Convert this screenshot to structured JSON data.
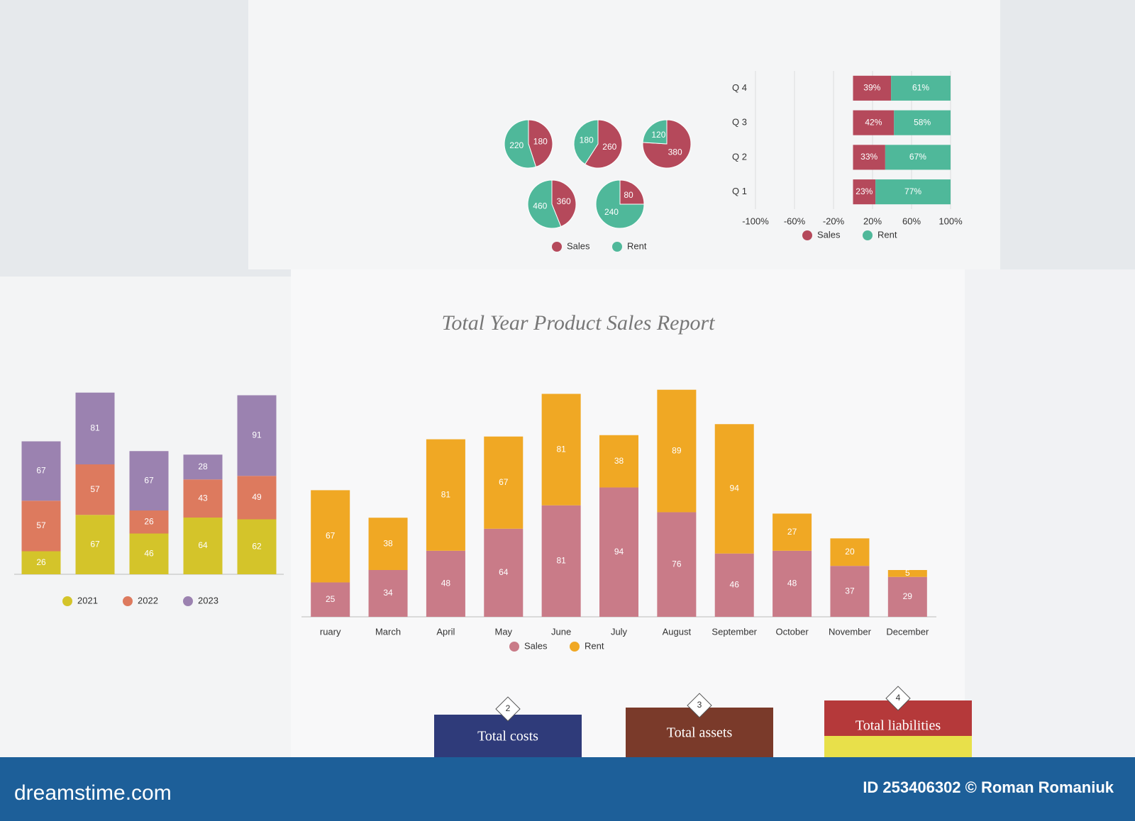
{
  "chart_data": [
    {
      "type": "stacked-bar",
      "title": "Total Year Product Sales Report",
      "categories": [
        "ruary",
        "March",
        "April",
        "May",
        "June",
        "July",
        "August",
        "September",
        "October",
        "November",
        "December"
      ],
      "series": [
        {
          "name": "Sales",
          "color": "#c97b88",
          "values": [
            25,
            34,
            48,
            64,
            81,
            94,
            76,
            46,
            48,
            37,
            29
          ]
        },
        {
          "name": "Rent",
          "color": "#f0a824",
          "values": [
            67,
            38,
            81,
            67,
            81,
            38,
            89,
            94,
            27,
            20,
            5
          ]
        }
      ],
      "ylim": [
        0,
        170
      ]
    },
    {
      "type": "stacked-bar",
      "categories": [
        null,
        null,
        null,
        null,
        null
      ],
      "series": [
        {
          "name": "2021",
          "color": "#d4c42a",
          "values": [
            26,
            67,
            46,
            64,
            62
          ]
        },
        {
          "name": "2022",
          "color": "#dd7a5e",
          "values": [
            57,
            57,
            26,
            43,
            49
          ]
        },
        {
          "name": "2023",
          "color": "#9b82b0",
          "values": [
            67,
            81,
            67,
            28,
            91
          ]
        }
      ],
      "ylim": [
        0,
        200
      ]
    },
    {
      "type": "stacked-hbar",
      "categories": [
        "Q 1",
        "Q 2",
        "Q 3",
        "Q 4"
      ],
      "series": [
        {
          "name": "Sales",
          "color": "#b5495b",
          "values": [
            23,
            33,
            42,
            39
          ],
          "value_labels": [
            "23%",
            "33%",
            "42%",
            "39%"
          ]
        },
        {
          "name": "Rent",
          "color": "#4fb89a",
          "values": [
            77,
            67,
            58,
            61
          ],
          "value_labels": [
            "77%",
            "67%",
            "58%",
            "61%"
          ]
        }
      ],
      "xlim": [
        -100,
        100
      ],
      "xticks": [
        {
          "value": -100,
          "label": "-100%"
        },
        {
          "value": -60,
          "label": "-60%"
        },
        {
          "value": -20,
          "label": "-20%"
        },
        {
          "value": 20,
          "label": "20%"
        },
        {
          "value": 60,
          "label": "60%"
        },
        {
          "value": 100,
          "label": "100%"
        }
      ]
    },
    {
      "type": "pie",
      "series": [
        {
          "name": "Sales",
          "color": "#b5495b",
          "values": [
            180,
            260,
            380,
            360,
            80
          ]
        },
        {
          "name": "Rent",
          "color": "#4fb89a",
          "values": [
            220,
            180,
            120,
            460,
            240
          ]
        }
      ]
    }
  ],
  "cards": [
    {
      "number": 2,
      "title": "Total costs"
    },
    {
      "number": 3,
      "title": "Total assets"
    },
    {
      "number": 4,
      "title": "Total liabilities"
    }
  ],
  "footer": {
    "site": "dreamstime.com",
    "credit": "ID 253406302 © Roman Romaniuk"
  }
}
